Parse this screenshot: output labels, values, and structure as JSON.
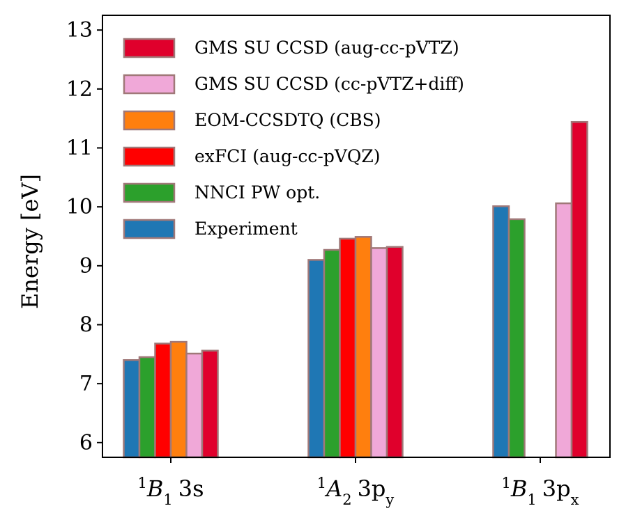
{
  "chart_data": {
    "type": "bar",
    "title": "",
    "xlabel": "",
    "ylabel": "Energy [eV]",
    "ylim": [
      5.75,
      13.25
    ],
    "yticks": [
      "6",
      "7",
      "8",
      "9",
      "10",
      "11",
      "12",
      "13"
    ],
    "legend_position": "top-left",
    "categories": [
      {
        "sup": "1",
        "sym": "B",
        "sub": "1",
        "orb": "3s",
        "orbsub": ""
      },
      {
        "sup": "1",
        "sym": "A",
        "sub": "2",
        "orb": "3p",
        "orbsub": "y"
      },
      {
        "sup": "1",
        "sym": "B",
        "sub": "1",
        "orb": "3p",
        "orbsub": "x"
      }
    ],
    "series": [
      {
        "name": "Experiment",
        "color": "#1f77b4",
        "values": [
          7.4,
          9.1,
          10.01
        ]
      },
      {
        "name": "NNCI PW opt.",
        "color": "#2ca02c",
        "values": [
          7.45,
          9.27,
          9.79
        ]
      },
      {
        "name": "exFCI (aug-cc-pVQZ)",
        "color": "#ff0000",
        "values": [
          7.68,
          9.46,
          null
        ]
      },
      {
        "name": "EOM-CCSDTQ (CBS)",
        "color": "#ff7f0e",
        "values": [
          7.71,
          9.49,
          null
        ]
      },
      {
        "name": "GMS SU CCSD (cc-pVTZ+diff)",
        "color": "#f0a8d8",
        "values": [
          7.51,
          9.3,
          10.06
        ]
      },
      {
        "name": "GMS SU CCSD (aug-cc-pVTZ)",
        "color": "#e0002c",
        "values": [
          7.56,
          9.32,
          11.44
        ]
      }
    ],
    "bar_edge_color": "#a07878"
  }
}
